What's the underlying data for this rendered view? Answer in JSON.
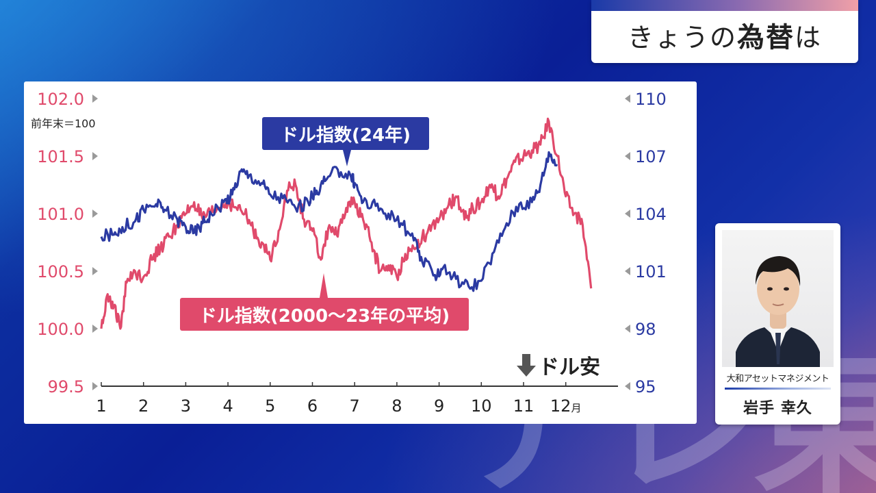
{
  "header": {
    "title_prefix": "きょうの",
    "title_bold": "為替",
    "title_suffix": "は"
  },
  "watermark": "テレ東",
  "presenter": {
    "company": "大和アセットマネジメント",
    "name": "岩手 幸久"
  },
  "colors": {
    "series_2024": "#2b3aa2",
    "series_avg": "#e04a6b",
    "axis": "#333333"
  },
  "chart_data": {
    "type": "line",
    "unit_note": "前年末＝100",
    "month_suffix": "月",
    "x_ticks": [
      "1",
      "2",
      "3",
      "4",
      "5",
      "6",
      "7",
      "8",
      "9",
      "10",
      "11",
      "12"
    ],
    "left_axis": {
      "ticks": [
        "102.0",
        "101.5",
        "101.0",
        "100.5",
        "100.0",
        "99.5"
      ],
      "range": [
        99.5,
        102.0
      ],
      "color": "#e04a6b"
    },
    "right_axis": {
      "ticks": [
        "110",
        "107",
        "104",
        "101",
        "98",
        "95"
      ],
      "range": [
        95,
        110
      ],
      "color": "#2b3aa2"
    },
    "annotation": "ドル安",
    "series": [
      {
        "name": "ドル指数(24年)",
        "axis": "right",
        "x": [
          1.0,
          1.3,
          1.5,
          1.8,
          2.0,
          2.3,
          2.5,
          2.8,
          3.0,
          3.2,
          3.4,
          3.6,
          3.9,
          4.1,
          4.3,
          4.5,
          4.8,
          5.0,
          5.3,
          5.6,
          5.9,
          6.1,
          6.3,
          6.6,
          6.9,
          7.0,
          7.2,
          7.5,
          7.8,
          8.1,
          8.4,
          8.6,
          8.9,
          9.1,
          9.4,
          9.7,
          10.0,
          10.3,
          10.6,
          10.9,
          11.2,
          11.4,
          11.6,
          11.8
        ],
        "values": [
          102.8,
          102.9,
          103.3,
          103.6,
          104.2,
          104.5,
          104.2,
          103.7,
          103.3,
          103.0,
          103.5,
          104.0,
          104.6,
          105.0,
          106.2,
          106.0,
          105.6,
          105.0,
          104.8,
          104.3,
          104.6,
          105.2,
          105.7,
          106.3,
          106.0,
          105.6,
          104.6,
          104.4,
          104.0,
          103.5,
          102.6,
          101.5,
          100.8,
          101.2,
          100.6,
          100.2,
          100.5,
          102.0,
          103.5,
          104.5,
          104.6,
          105.5,
          107.2,
          106.5
        ]
      },
      {
        "name": "ドル指数(2000〜23年の平均)",
        "axis": "left",
        "x": [
          1.0,
          1.15,
          1.3,
          1.45,
          1.6,
          1.8,
          2.0,
          2.2,
          2.4,
          2.6,
          2.8,
          3.0,
          3.2,
          3.4,
          3.6,
          3.8,
          4.0,
          4.2,
          4.4,
          4.6,
          4.8,
          5.0,
          5.2,
          5.4,
          5.6,
          5.8,
          6.0,
          6.2,
          6.4,
          6.6,
          6.8,
          7.0,
          7.2,
          7.4,
          7.6,
          7.8,
          8.0,
          8.2,
          8.4,
          8.6,
          8.8,
          9.0,
          9.2,
          9.4,
          9.6,
          9.8,
          10.0,
          10.2,
          10.4,
          10.6,
          10.8,
          11.0,
          11.2,
          11.4,
          11.6,
          11.8,
          12.0,
          12.2,
          12.4,
          12.6
        ],
        "values": [
          100.0,
          100.3,
          100.2,
          100.0,
          100.4,
          100.5,
          100.45,
          100.6,
          100.7,
          100.8,
          100.9,
          101.0,
          101.1,
          100.95,
          101.0,
          101.05,
          101.1,
          101.05,
          101.0,
          100.85,
          100.75,
          100.6,
          100.85,
          101.2,
          101.25,
          100.95,
          100.85,
          100.6,
          100.9,
          100.8,
          101.05,
          101.1,
          100.95,
          100.75,
          100.5,
          100.55,
          100.45,
          100.65,
          100.7,
          100.8,
          100.85,
          100.95,
          101.05,
          101.15,
          100.95,
          101.05,
          101.1,
          101.25,
          101.15,
          101.3,
          101.45,
          101.5,
          101.55,
          101.6,
          101.8,
          101.5,
          101.15,
          101.0,
          100.9,
          100.35
        ]
      }
    ]
  }
}
